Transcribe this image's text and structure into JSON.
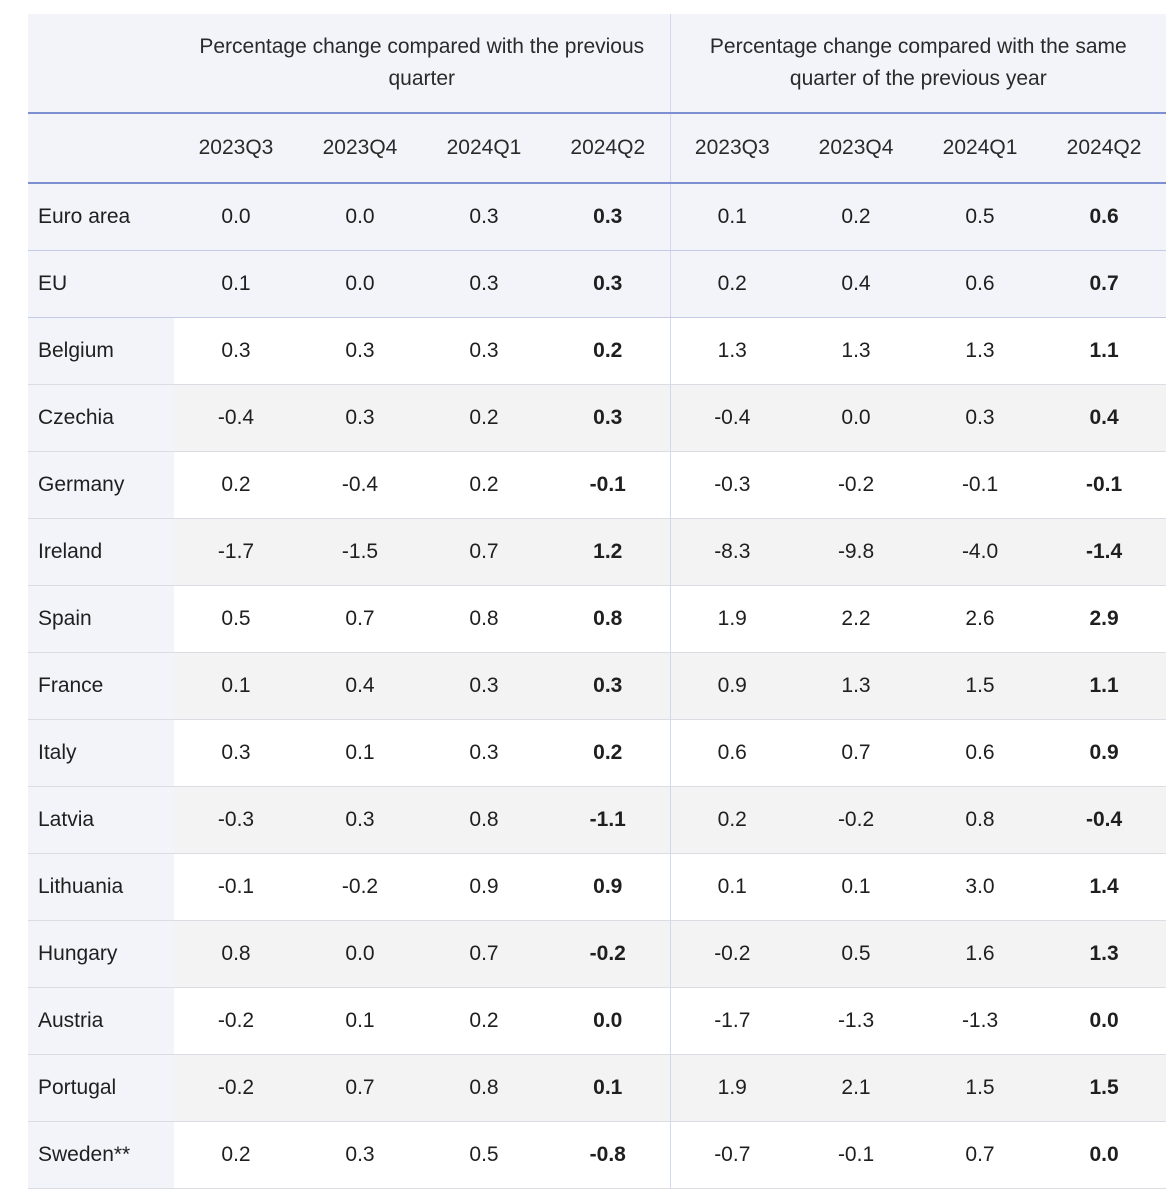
{
  "header": {
    "group_left": "Percentage change compared with the previous quarter",
    "group_right": "Percentage change compared with the same quarter of the previous year",
    "periods": [
      "2023Q3",
      "2023Q4",
      "2024Q1",
      "2024Q2",
      "2023Q3",
      "2023Q4",
      "2024Q1",
      "2024Q2"
    ]
  },
  "rows": [
    {
      "country": "Euro area",
      "v": [
        "0.0",
        "0.0",
        "0.3",
        "0.3",
        "0.1",
        "0.2",
        "0.5",
        "0.6"
      ]
    },
    {
      "country": "EU",
      "v": [
        "0.1",
        "0.0",
        "0.3",
        "0.3",
        "0.2",
        "0.4",
        "0.6",
        "0.7"
      ]
    },
    {
      "country": "Belgium",
      "v": [
        "0.3",
        "0.3",
        "0.3",
        "0.2",
        "1.3",
        "1.3",
        "1.3",
        "1.1"
      ]
    },
    {
      "country": "Czechia",
      "v": [
        "-0.4",
        "0.3",
        "0.2",
        "0.3",
        "-0.4",
        "0.0",
        "0.3",
        "0.4"
      ]
    },
    {
      "country": "Germany",
      "v": [
        "0.2",
        "-0.4",
        "0.2",
        "-0.1",
        "-0.3",
        "-0.2",
        "-0.1",
        "-0.1"
      ]
    },
    {
      "country": "Ireland",
      "v": [
        "-1.7",
        "-1.5",
        "0.7",
        "1.2",
        "-8.3",
        "-9.8",
        "-4.0",
        "-1.4"
      ]
    },
    {
      "country": "Spain",
      "v": [
        "0.5",
        "0.7",
        "0.8",
        "0.8",
        "1.9",
        "2.2",
        "2.6",
        "2.9"
      ]
    },
    {
      "country": "France",
      "v": [
        "0.1",
        "0.4",
        "0.3",
        "0.3",
        "0.9",
        "1.3",
        "1.5",
        "1.1"
      ]
    },
    {
      "country": "Italy",
      "v": [
        "0.3",
        "0.1",
        "0.3",
        "0.2",
        "0.6",
        "0.7",
        "0.6",
        "0.9"
      ]
    },
    {
      "country": "Latvia",
      "v": [
        "-0.3",
        "0.3",
        "0.8",
        "-1.1",
        "0.2",
        "-0.2",
        "0.8",
        "-0.4"
      ]
    },
    {
      "country": "Lithuania",
      "v": [
        "-0.1",
        "-0.2",
        "0.9",
        "0.9",
        "0.1",
        "0.1",
        "3.0",
        "1.4"
      ]
    },
    {
      "country": "Hungary",
      "v": [
        "0.8",
        "0.0",
        "0.7",
        "-0.2",
        "-0.2",
        "0.5",
        "1.6",
        "1.3"
      ]
    },
    {
      "country": "Austria",
      "v": [
        "-0.2",
        "0.1",
        "0.2",
        "0.0",
        "-1.7",
        "-1.3",
        "-1.3",
        "0.0"
      ]
    },
    {
      "country": "Portugal",
      "v": [
        "-0.2",
        "0.7",
        "0.8",
        "0.1",
        "1.9",
        "2.1",
        "1.5",
        "1.5"
      ]
    },
    {
      "country": "Sweden**",
      "v": [
        "0.2",
        "0.3",
        "0.5",
        "-0.8",
        "-0.7",
        "-0.1",
        "0.7",
        "0.0"
      ]
    }
  ]
}
